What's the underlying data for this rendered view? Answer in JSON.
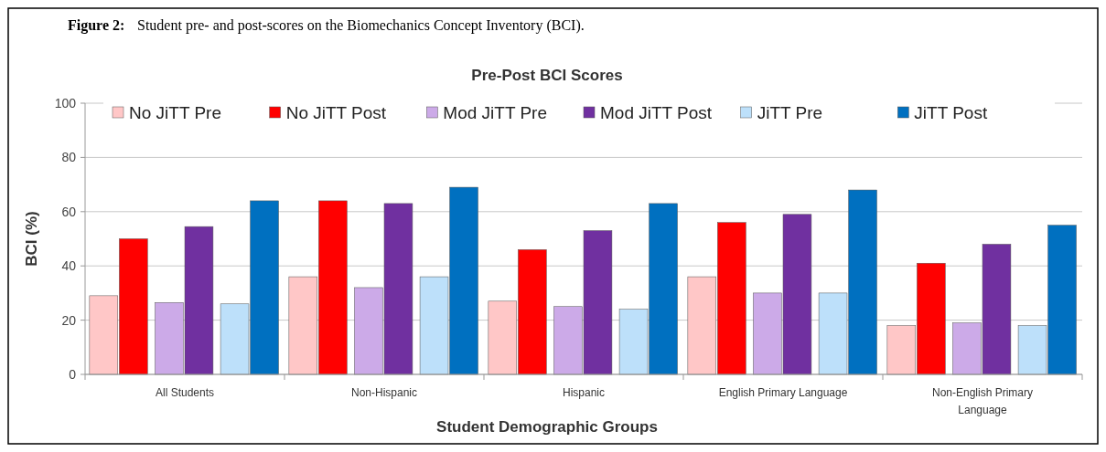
{
  "chart_data": {
    "type": "bar",
    "title": "Pre-Post BCI Scores",
    "annotations": [
      "Figure 2:",
      "Student pre- and post-scores on the Biomechanics Concept Inventory (BCI)."
    ],
    "xlabel": "Student Demographic Groups",
    "ylabel": "BCI (%)",
    "categories": [
      "All Students",
      "Non-Hispanic",
      "Hispanic",
      "English Primary Language",
      "Non-English Primary Language"
    ],
    "series": [
      {
        "name": "No JiTT Pre",
        "color": "#ffc7c7",
        "values": [
          29,
          36,
          27,
          36,
          18
        ]
      },
      {
        "name": "No JiTT Post",
        "color": "#ff0000",
        "values": [
          50,
          64,
          46,
          56,
          41
        ]
      },
      {
        "name": "Mod JiTT Pre",
        "color": "#ccaae8",
        "values": [
          26.5,
          32,
          25,
          30,
          19
        ]
      },
      {
        "name": "Mod JiTT Post",
        "color": "#7030a0",
        "values": [
          54.5,
          63,
          53,
          59,
          48
        ]
      },
      {
        "name": "JiTT Pre",
        "color": "#bde0fa",
        "values": [
          26,
          36,
          24,
          30,
          18
        ]
      },
      {
        "name": "JiTT Post",
        "color": "#0070c0",
        "values": [
          64,
          69,
          63,
          68,
          55
        ]
      }
    ],
    "ylim": [
      0,
      100
    ],
    "yticks": [
      0,
      20,
      40,
      60,
      80,
      100
    ],
    "grid": "y",
    "legend": "top"
  }
}
